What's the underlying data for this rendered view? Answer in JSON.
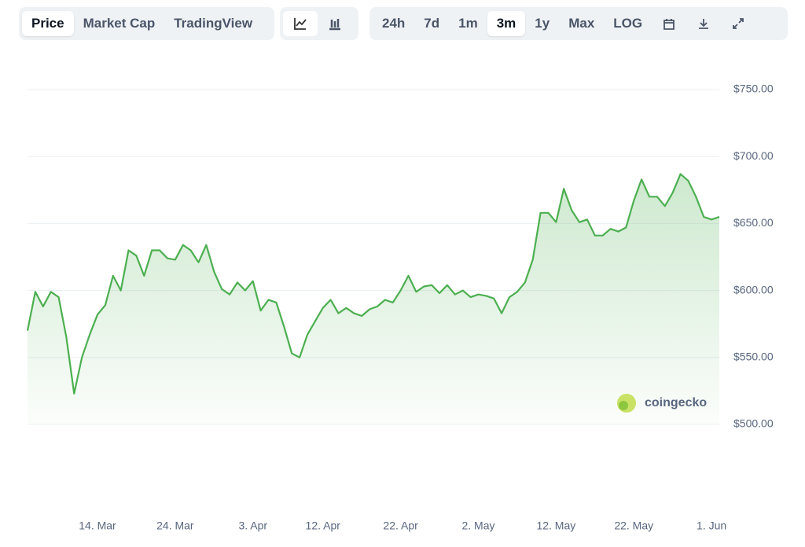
{
  "toolbar": {
    "views": [
      "Price",
      "Market Cap",
      "TradingView"
    ],
    "active_view": "Price",
    "ranges": [
      "24h",
      "7d",
      "1m",
      "3m",
      "1y",
      "Max",
      "LOG"
    ],
    "active_range": "3m"
  },
  "watermark": "coingecko",
  "chart_data": {
    "type": "line",
    "categories": [
      "5. Mar",
      "6. Mar",
      "7. Mar",
      "8. Mar",
      "9. Mar",
      "10. Mar",
      "11. Mar",
      "12. Mar",
      "13. Mar",
      "14. Mar",
      "15. Mar",
      "16. Mar",
      "17. Mar",
      "18. Mar",
      "19. Mar",
      "20. Mar",
      "21. Mar",
      "22. Mar",
      "23. Mar",
      "24. Mar",
      "25. Mar",
      "26. Mar",
      "27. Mar",
      "28. Mar",
      "29. Mar",
      "30. Mar",
      "31. Mar",
      "1. Apr",
      "2. Apr",
      "3. Apr",
      "4. Apr",
      "5. Apr",
      "6. Apr",
      "7. Apr",
      "8. Apr",
      "9. Apr",
      "10. Apr",
      "11. Apr",
      "12. Apr",
      "13. Apr",
      "14. Apr",
      "15. Apr",
      "16. Apr",
      "17. Apr",
      "18. Apr",
      "19. Apr",
      "20. Apr",
      "21. Apr",
      "22. Apr",
      "23. Apr",
      "24. Apr",
      "25. Apr",
      "26. Apr",
      "27. Apr",
      "28. Apr",
      "29. Apr",
      "30. Apr",
      "1. May",
      "2. May",
      "3. May",
      "4. May",
      "5. May",
      "6. May",
      "7. May",
      "8. May",
      "9. May",
      "10. May",
      "11. May",
      "12. May",
      "13. May",
      "14. May",
      "15. May",
      "16. May",
      "17. May",
      "18. May",
      "19. May",
      "20. May",
      "21. May",
      "22. May",
      "23. May",
      "24. May",
      "25. May",
      "26. May",
      "27. May",
      "28. May",
      "29. May",
      "30. May",
      "31. May",
      "1. Jun",
      "2. Jun"
    ],
    "values": [
      570,
      599,
      588,
      599,
      595,
      565,
      523,
      550,
      567,
      582,
      589,
      611,
      600,
      630,
      626,
      611,
      630,
      630,
      624,
      623,
      634,
      630,
      621,
      634,
      614,
      601,
      597,
      606,
      600,
      607,
      585,
      593,
      591,
      573,
      553,
      550,
      567,
      577,
      587,
      593,
      583,
      587,
      583,
      581,
      586,
      588,
      593,
      591,
      600,
      611,
      599,
      603,
      604,
      598,
      604,
      597,
      600,
      595,
      597,
      596,
      594,
      583,
      595,
      599,
      606,
      623,
      658,
      658,
      651,
      676,
      660,
      651,
      653,
      641,
      641,
      646,
      644,
      647,
      667,
      683,
      670,
      670,
      663,
      673,
      687,
      682,
      670,
      655,
      653,
      655
    ],
    "color": "#4caf50",
    "ylim": [
      500,
      750
    ],
    "yticks": [
      {
        "value": 500,
        "label": "$500.00"
      },
      {
        "value": 550,
        "label": "$550.00"
      },
      {
        "value": 600,
        "label": "$600.00"
      },
      {
        "value": 650,
        "label": "$650.00"
      },
      {
        "value": 700,
        "label": "$700.00"
      },
      {
        "value": 750,
        "label": "$750.00"
      }
    ],
    "xticks": [
      "14. Mar",
      "24. Mar",
      "3. Apr",
      "12. Apr",
      "22. Apr",
      "2. May",
      "12. May",
      "22. May",
      "1. Jun"
    ],
    "grid": true
  }
}
